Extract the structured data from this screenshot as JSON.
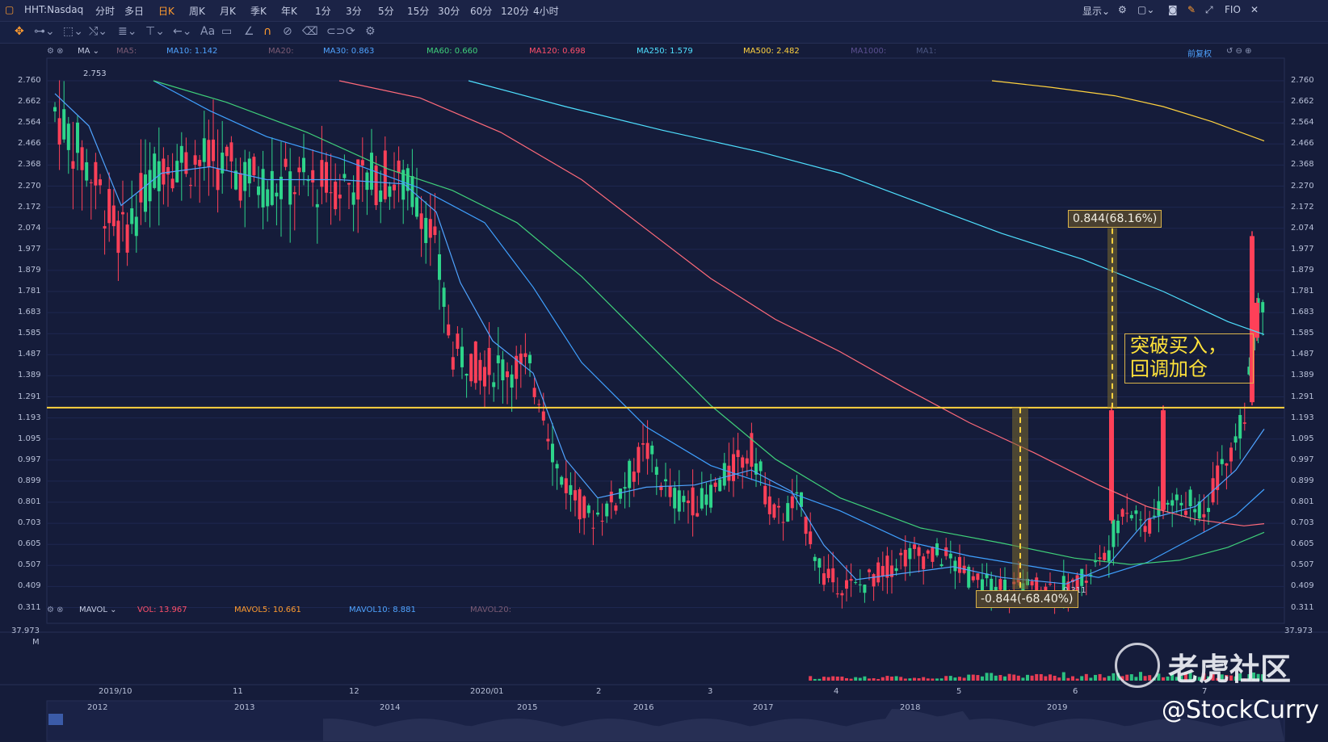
{
  "topbar": {
    "symbol": "HHT:Nasdaq",
    "periods": [
      "分时",
      "多日",
      "日K",
      "周K",
      "月K",
      "季K",
      "年K",
      "1分",
      "3分",
      "5分",
      "15分",
      "30分",
      "60分",
      "120分",
      "4小时"
    ],
    "active_period": "日K",
    "display_label": "显示",
    "fio_label": "FIO"
  },
  "ma_legend": {
    "name": "MA",
    "items": [
      {
        "label": "MA5:",
        "color": "#7b5b74"
      },
      {
        "label": "MA10: 1.142",
        "color": "#4fa3ff"
      },
      {
        "label": "MA20:",
        "color": "#7b5b74"
      },
      {
        "label": "MA30: 0.863",
        "color": "#4fa3ff"
      },
      {
        "label": "MA60: 0.660",
        "color": "#3fd07a"
      },
      {
        "label": "MA120: 0.698",
        "color": "#ff4f6a"
      },
      {
        "label": "MA250: 1.579",
        "color": "#4fe0ff"
      },
      {
        "label": "MA500: 2.482",
        "color": "#ffd23f"
      },
      {
        "label": "MA1000:",
        "color": "#5a4f8f"
      },
      {
        "label": "MA1:",
        "color": "#4a5580"
      }
    ],
    "restore_label": "前复权"
  },
  "price_axis": [
    "2.760",
    "2.662",
    "2.564",
    "2.466",
    "2.368",
    "2.270",
    "2.172",
    "2.074",
    "1.977",
    "1.879",
    "1.781",
    "1.683",
    "1.585",
    "1.487",
    "1.389",
    "1.291",
    "1.193",
    "1.095",
    "0.997",
    "0.899",
    "0.801",
    "0.703",
    "0.605",
    "0.507",
    "0.409",
    "0.311"
  ],
  "annotations": {
    "high_label": "2.753",
    "low_label": "0.311",
    "gain_label": "0.844(68.16%)",
    "loss_label": "-0.844(-68.40%)",
    "note_line1": "突破买入，",
    "note_line2": "回调加仓"
  },
  "vol_legend": {
    "name": "MAVOL",
    "items": [
      {
        "label": "VOL: 13.967",
        "color": "#ff4f6a"
      },
      {
        "label": "MAVOL5: 10.661",
        "color": "#ff9b2f"
      },
      {
        "label": "MAVOL10: 8.881",
        "color": "#4fa3ff"
      },
      {
        "label": "MAVOL20:",
        "color": "#7b5b74"
      }
    ],
    "vol_value": "37.973",
    "vol_unit": "M",
    "vol_right": "37.973"
  },
  "date_axis": [
    "2019/10",
    "11",
    "12",
    "2020/01",
    "2",
    "3",
    "4",
    "5",
    "6",
    "7"
  ],
  "overview_axis": [
    "2012",
    "2013",
    "2014",
    "2015",
    "2016",
    "2017",
    "2018",
    "2019"
  ],
  "watermark": {
    "brand": "老虎社区",
    "handle": "@StockCurry"
  },
  "colors": {
    "up": "#2ed48a",
    "down": "#ff4058",
    "support": "#ffd23f"
  }
}
